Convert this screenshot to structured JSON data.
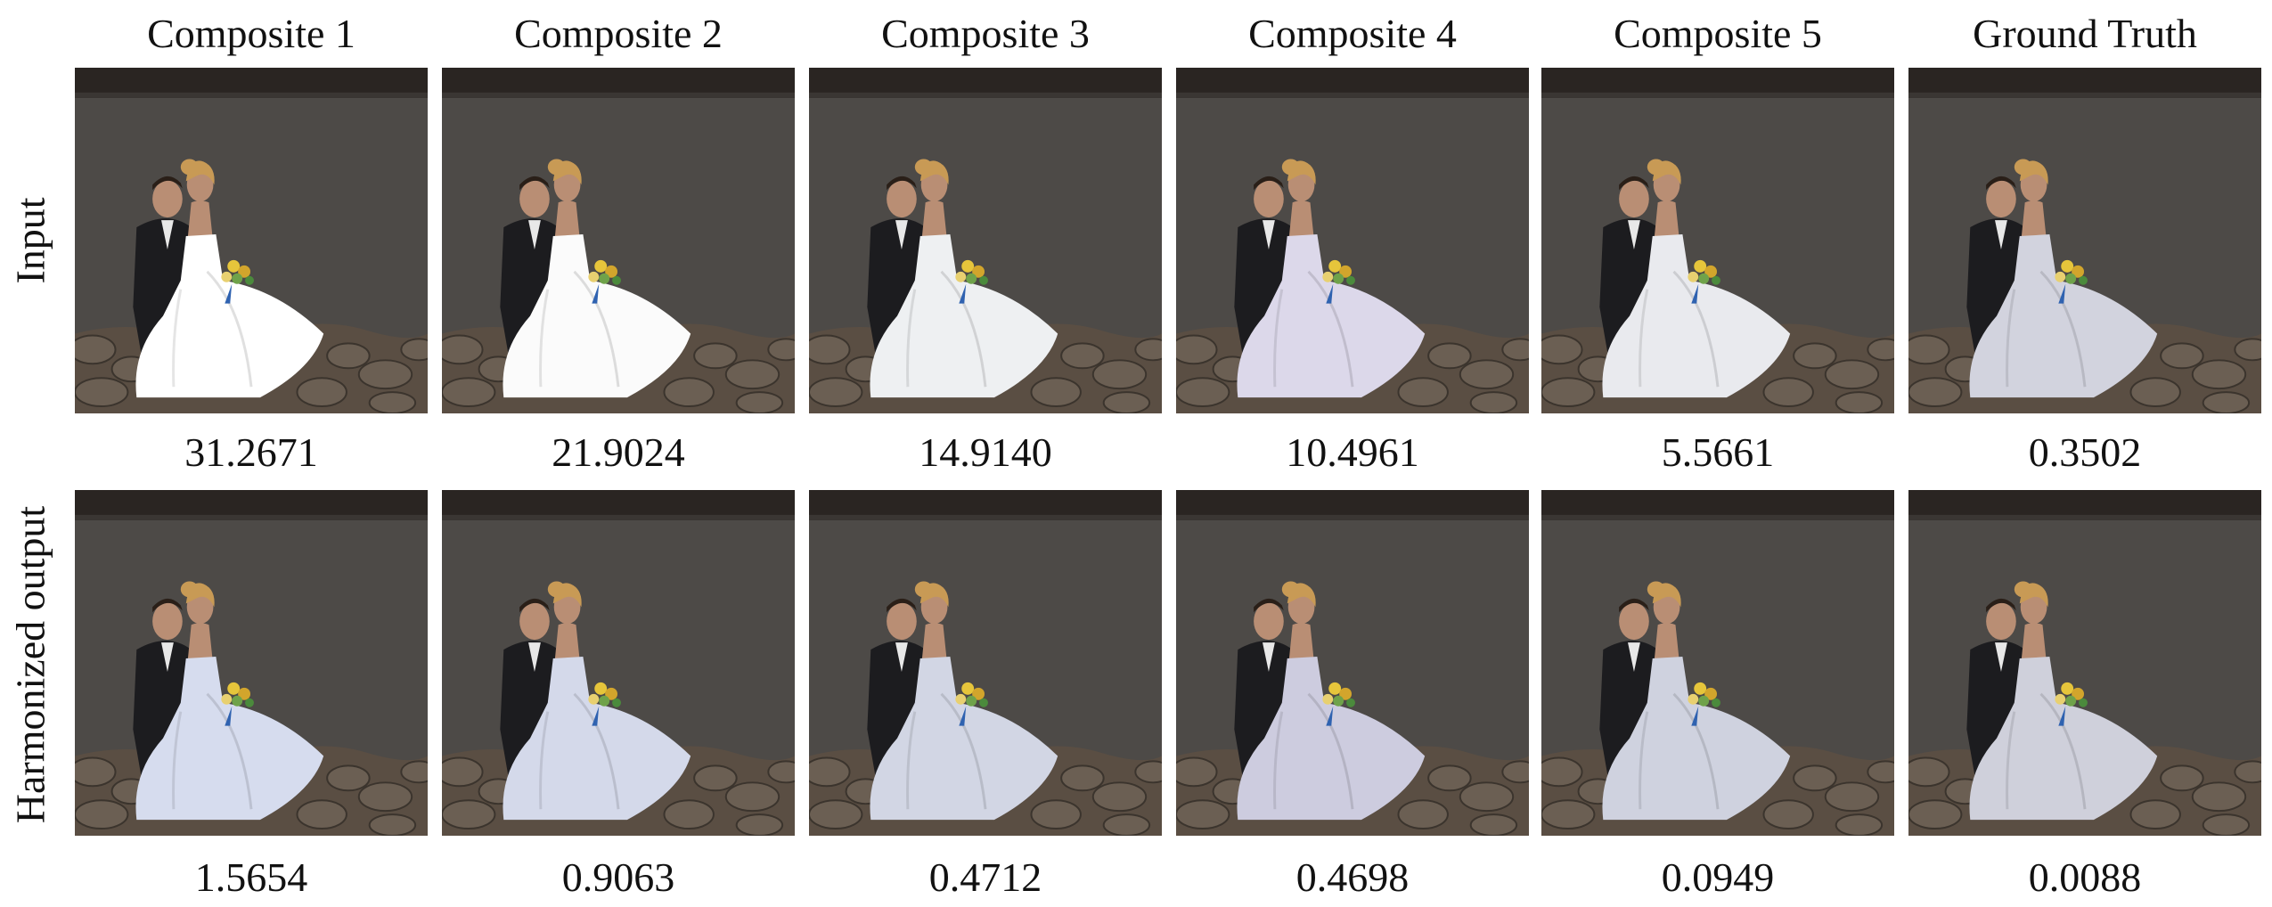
{
  "columns": [
    "Composite 1",
    "Composite 2",
    "Composite 3",
    "Composite 4",
    "Composite 5",
    "Ground Truth"
  ],
  "rows": [
    {
      "label": "Input",
      "scores": [
        "31.2671",
        "21.9024",
        "14.9140",
        "10.4961",
        "5.5661",
        "0.3502"
      ],
      "dress_colors": [
        "#ffffff",
        "#fbfbfb",
        "#eef0f2",
        "#dcd8ea",
        "#e9eaee",
        "#d2d3de"
      ]
    },
    {
      "label": "Harmonized output",
      "scores": [
        "1.5654",
        "0.9063",
        "0.4712",
        "0.4698",
        "0.0949",
        "0.0088"
      ],
      "dress_colors": [
        "#d6dcee",
        "#d4d9ea",
        "#d2d6e4",
        "#cdccdf",
        "#cfd2df",
        "#cfd0db"
      ]
    }
  ],
  "colors": {
    "water": "#4d4a47",
    "shoreline": "#2a2522",
    "rocks": "#5a4e43",
    "suit": "#1c1c1f",
    "skin": "#b98e74",
    "hair": "#c89a55"
  },
  "photo_description": "bride and groom seated on lakeside rocks"
}
